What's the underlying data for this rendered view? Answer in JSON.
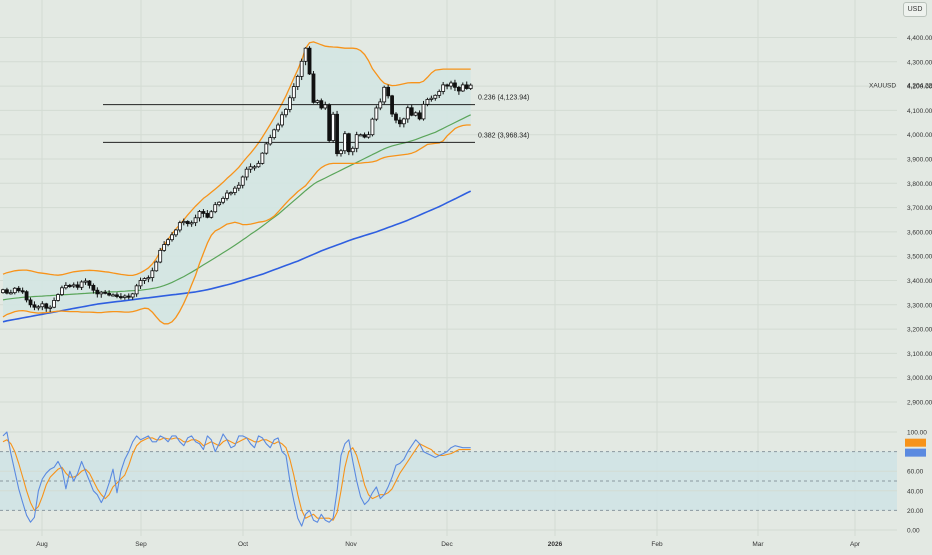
{
  "currency": "USD",
  "symbol_label": "XAUUSD",
  "last_price_label": "4,204.22",
  "colors": {
    "background": "#e3e9e3",
    "grid": "#d3dbd3",
    "candle_up_fill": "#ffffff",
    "candle_down_fill": "#111111",
    "candle_outline": "#111111",
    "bollinger": "#f7931a",
    "bollinger_fill": "#d3e6e2",
    "sma_green": "#5aa55a",
    "sma_blue": "#2f5fe0",
    "fib_line": "#222222",
    "stoch_k": "#5b8ae0",
    "stoch_d": "#f7931a",
    "stoch_band": "#cfe3e5"
  },
  "chart_data": [
    {
      "type": "candlestick",
      "instrument": "XAUUSD",
      "x_ticks": [
        "Aug",
        "Sep",
        "Oct",
        "Nov",
        "Dec",
        "2026",
        "Feb",
        "Mar",
        "Apr"
      ],
      "y_ticks": [
        "4,400.00",
        "4,300.00",
        "4,200.00",
        "4,100.00",
        "4,000.00",
        "3,900.00",
        "3,800.00",
        "3,700.00",
        "3,600.00",
        "3,500.00",
        "3,400.00",
        "3,300.00",
        "3,200.00",
        "3,100.00",
        "3,000.00",
        "2,900.00"
      ],
      "ylim": [
        2850,
        4440
      ],
      "grid": true,
      "close": [
        3362,
        3348,
        3350,
        3368,
        3358,
        3354,
        3320,
        3300,
        3290,
        3292,
        3304,
        3286,
        3290,
        3318,
        3342,
        3370,
        3380,
        3378,
        3382,
        3372,
        3394,
        3398,
        3380,
        3360,
        3345,
        3352,
        3347,
        3340,
        3341,
        3334,
        3330,
        3336,
        3332,
        3345,
        3378,
        3400,
        3408,
        3412,
        3440,
        3476,
        3524,
        3548,
        3568,
        3588,
        3608,
        3638,
        3643,
        3634,
        3638,
        3658,
        3684,
        3676,
        3660,
        3683,
        3712,
        3722,
        3738,
        3760,
        3762,
        3780,
        3792,
        3826,
        3858,
        3868,
        3868,
        3882,
        3924,
        3962,
        3988,
        4020,
        4040,
        4082,
        4104,
        4152,
        4198,
        4240,
        4302,
        4356,
        4250,
        4133,
        4140,
        4110,
        4123,
        3976,
        4084,
        3922,
        3934,
        4004,
        3930,
        3944,
        4000,
        4000,
        3990,
        4000,
        4064,
        4110,
        4135,
        4195,
        4160,
        4085,
        4060,
        4045,
        4065,
        4111,
        4080,
        4090,
        4065,
        4125,
        4145,
        4150,
        4162,
        4178,
        4205,
        4200,
        4213,
        4195,
        4180,
        4205,
        4190,
        4204
      ],
      "annotations": [
        "0.236 (4,123.94)",
        "0.382 (3,968.34)"
      ],
      "fib_levels": [
        4123.94,
        3968.34
      ],
      "bollinger_upper": [
        3426,
        3432,
        3436,
        3440,
        3442,
        3443,
        3443,
        3440,
        3436,
        3432,
        3430,
        3428,
        3425,
        3423,
        3422,
        3424,
        3428,
        3432,
        3436,
        3438,
        3440,
        3441,
        3442,
        3441,
        3440,
        3438,
        3436,
        3434,
        3431,
        3428,
        3425,
        3423,
        3421,
        3421,
        3425,
        3432,
        3441,
        3452,
        3468,
        3490,
        3518,
        3545,
        3570,
        3592,
        3612,
        3630,
        3650,
        3670,
        3688,
        3706,
        3722,
        3738,
        3750,
        3763,
        3776,
        3790,
        3804,
        3820,
        3834,
        3850,
        3866,
        3886,
        3906,
        3924,
        3944,
        3966,
        3990,
        4016,
        4042,
        4070,
        4098,
        4128,
        4160,
        4196,
        4232,
        4268,
        4306,
        4356,
        4378,
        4382,
        4376,
        4370,
        4364,
        4362,
        4361,
        4360,
        4358,
        4356,
        4356,
        4356,
        4354,
        4346,
        4330,
        4305,
        4272,
        4250,
        4228,
        4212,
        4206,
        4202,
        4203,
        4206,
        4210,
        4213,
        4214,
        4214,
        4214,
        4220,
        4236,
        4254,
        4266,
        4268,
        4270,
        4270,
        4270,
        4270,
        4270,
        4270,
        4270,
        4270
      ],
      "bollinger_lower": [
        3250,
        3260,
        3266,
        3272,
        3275,
        3276,
        3274,
        3270,
        3268,
        3266,
        3267,
        3268,
        3270,
        3272,
        3274,
        3274,
        3273,
        3272,
        3272,
        3272,
        3270,
        3270,
        3270,
        3269,
        3268,
        3268,
        3270,
        3271,
        3272,
        3272,
        3271,
        3270,
        3270,
        3272,
        3276,
        3282,
        3286,
        3284,
        3270,
        3250,
        3232,
        3222,
        3222,
        3230,
        3248,
        3274,
        3306,
        3342,
        3382,
        3422,
        3470,
        3512,
        3554,
        3586,
        3604,
        3612,
        3622,
        3632,
        3636,
        3640,
        3636,
        3630,
        3630,
        3632,
        3636,
        3640,
        3642,
        3646,
        3654,
        3665,
        3682,
        3700,
        3718,
        3735,
        3750,
        3766,
        3778,
        3790,
        3810,
        3830,
        3850,
        3864,
        3874,
        3880,
        3882,
        3882,
        3882,
        3882,
        3882,
        3882,
        3882,
        3883,
        3885,
        3886,
        3888,
        3892,
        3900,
        3906,
        3910,
        3912,
        3914,
        3916,
        3918,
        3920,
        3924,
        3930,
        3940,
        3950,
        3960,
        3962,
        3964,
        3966,
        3975,
        3995,
        4010,
        4025,
        4033,
        4038,
        4040,
        4040
      ],
      "sma_green": [
        3320,
        3323,
        3325,
        3327,
        3329,
        3331,
        3332,
        3333,
        3334,
        3335,
        3336,
        3337,
        3338,
        3339,
        3340,
        3341,
        3342,
        3343,
        3344,
        3345,
        3346,
        3347,
        3348,
        3349,
        3350,
        3351,
        3352,
        3353,
        3353,
        3354,
        3355,
        3356,
        3357,
        3358,
        3359,
        3360,
        3362,
        3364,
        3367,
        3370,
        3374,
        3379,
        3385,
        3392,
        3400,
        3408,
        3416,
        3425,
        3434,
        3444,
        3454,
        3464,
        3474,
        3484,
        3494,
        3504,
        3514,
        3524,
        3534,
        3545,
        3556,
        3567,
        3578,
        3590,
        3601,
        3612,
        3624,
        3636,
        3648,
        3660,
        3672,
        3686,
        3700,
        3714,
        3728,
        3742,
        3756,
        3770,
        3783,
        3796,
        3806,
        3814,
        3822,
        3830,
        3838,
        3846,
        3854,
        3862,
        3870,
        3878,
        3886,
        3894,
        3902,
        3910,
        3918,
        3926,
        3934,
        3942,
        3948,
        3954,
        3958,
        3962,
        3966,
        3970,
        3975,
        3980,
        3986,
        3992,
        3998,
        4004,
        4010,
        4018,
        4026,
        4034,
        4042,
        4050,
        4058,
        4066,
        4074,
        4082
      ],
      "sma_blue": [
        3230,
        3234,
        3237,
        3240,
        3243,
        3246,
        3249,
        3252,
        3255,
        3258,
        3261,
        3264,
        3267,
        3270,
        3273,
        3276,
        3279,
        3282,
        3285,
        3288,
        3291,
        3294,
        3297,
        3300,
        3303,
        3305,
        3307,
        3309,
        3311,
        3313,
        3315,
        3317,
        3319,
        3321,
        3323,
        3325,
        3327,
        3329,
        3331,
        3333,
        3335,
        3337,
        3339,
        3341,
        3343,
        3345,
        3347,
        3349,
        3351,
        3353,
        3356,
        3359,
        3362,
        3366,
        3370,
        3374,
        3378,
        3382,
        3386,
        3391,
        3396,
        3401,
        3406,
        3411,
        3416,
        3421,
        3426,
        3432,
        3438,
        3444,
        3450,
        3456,
        3462,
        3468,
        3474,
        3480,
        3487,
        3494,
        3501,
        3508,
        3515,
        3522,
        3528,
        3534,
        3540,
        3546,
        3552,
        3558,
        3564,
        3570,
        3575,
        3580,
        3585,
        3590,
        3595,
        3600,
        3606,
        3612,
        3618,
        3624,
        3630,
        3636,
        3642,
        3648,
        3655,
        3662,
        3669,
        3676,
        3683,
        3690,
        3697,
        3704,
        3712,
        3720,
        3728,
        3736,
        3744,
        3752,
        3760,
        3768
      ]
    },
    {
      "type": "line",
      "panel": "stochastic oscillator",
      "y_ticks": [
        "100.00",
        "80.00",
        "60.00",
        "40.00",
        "20.00",
        "0.00"
      ],
      "ylim": [
        0,
        100
      ],
      "bands": [
        20,
        80
      ],
      "midline": 50,
      "series": [
        {
          "values": [
            96,
            100,
            78,
            60,
            42,
            28,
            15,
            8,
            13,
            40,
            52,
            58,
            62,
            64,
            70,
            62,
            42,
            60,
            50,
            58,
            70,
            60,
            50,
            40,
            36,
            28,
            36,
            48,
            62,
            38,
            60,
            72,
            80,
            90,
            96,
            92,
            94,
            96,
            90,
            90,
            96,
            94,
            90,
            96,
            96,
            90,
            86,
            94,
            96,
            90,
            88,
            82,
            96,
            92,
            80,
            88,
            98,
            92,
            84,
            86,
            96,
            96,
            94,
            88,
            84,
            96,
            94,
            88,
            84,
            92,
            94,
            80,
            76,
            50,
            30,
            12,
            4,
            16,
            20,
            10,
            8,
            16,
            10,
            8,
            12,
            40,
            76,
            88,
            92,
            70,
            50,
            34,
            26,
            30,
            38,
            44,
            32,
            36,
            44,
            54,
            66,
            68,
            72,
            80,
            86,
            92,
            88,
            80,
            78,
            76,
            74,
            76,
            78,
            80,
            84,
            86,
            85,
            84,
            84,
            84
          ]
        },
        {
          "values": [
            90,
            92,
            88,
            80,
            68,
            54,
            40,
            28,
            20,
            24,
            34,
            46,
            54,
            58,
            62,
            64,
            58,
            54,
            54,
            56,
            60,
            62,
            58,
            50,
            42,
            36,
            32,
            36,
            44,
            48,
            52,
            56,
            66,
            78,
            86,
            90,
            92,
            94,
            94,
            92,
            92,
            94,
            93,
            93,
            94,
            93,
            90,
            90,
            92,
            92,
            90,
            86,
            88,
            90,
            88,
            86,
            90,
            92,
            90,
            88,
            90,
            92,
            94,
            92,
            90,
            90,
            92,
            92,
            90,
            88,
            90,
            88,
            84,
            72,
            56,
            36,
            20,
            12,
            14,
            16,
            12,
            12,
            12,
            12,
            10,
            18,
            40,
            64,
            80,
            84,
            76,
            62,
            46,
            36,
            32,
            34,
            36,
            36,
            38,
            42,
            50,
            58,
            64,
            70,
            76,
            82,
            88,
            86,
            84,
            82,
            78,
            76,
            76,
            77,
            78,
            80,
            82,
            82,
            82,
            82
          ]
        }
      ]
    }
  ]
}
